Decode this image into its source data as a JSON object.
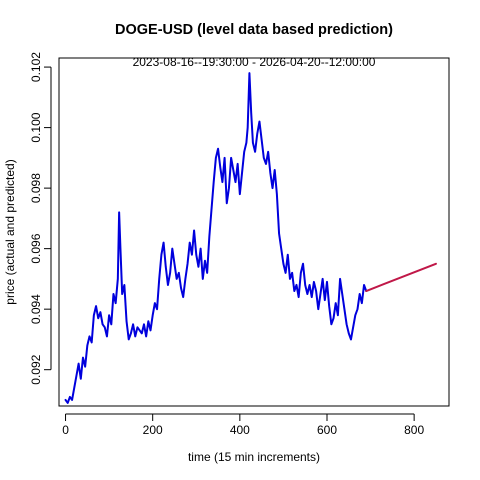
{
  "chart_data": {
    "type": "line",
    "title": "DOGE-USD (level data based prediction)",
    "subtitle": "2023-08-16--19:30:00  -  2026-04-20--12:00:00",
    "xlabel": "time (15 min increments)",
    "ylabel": "price (actual and predicted)",
    "xlim": [
      -15,
      880
    ],
    "ylim": [
      0.0908,
      0.1023
    ],
    "xticks": [
      0,
      200,
      400,
      600,
      800
    ],
    "yticks": [
      0.092,
      0.094,
      0.096,
      0.098,
      0.1,
      0.102
    ],
    "grid": false,
    "series": [
      {
        "color": "#0000dd",
        "x": [
          0,
          5,
          10,
          15,
          20,
          25,
          30,
          35,
          40,
          45,
          50,
          55,
          60,
          65,
          70,
          75,
          80,
          85,
          90,
          95,
          100,
          105,
          110,
          115,
          120,
          123,
          126,
          130,
          135,
          140,
          145,
          150,
          155,
          160,
          165,
          170,
          175,
          180,
          185,
          190,
          195,
          200,
          205,
          210,
          215,
          220,
          225,
          230,
          235,
          240,
          245,
          250,
          255,
          260,
          265,
          270,
          275,
          280,
          285,
          290,
          295,
          300,
          305,
          310,
          315,
          320,
          325,
          330,
          335,
          340,
          345,
          350,
          355,
          360,
          365,
          370,
          375,
          380,
          385,
          390,
          395,
          400,
          405,
          410,
          415,
          418,
          422,
          426,
          430,
          435,
          440,
          445,
          450,
          455,
          460,
          465,
          470,
          475,
          480,
          485,
          490,
          495,
          500,
          505,
          510,
          515,
          520,
          525,
          530,
          535,
          540,
          545,
          550,
          555,
          560,
          565,
          570,
          575,
          580,
          585,
          590,
          595,
          600,
          605,
          610,
          615,
          620,
          625,
          630,
          635,
          640,
          645,
          650,
          655,
          660,
          665,
          670,
          675,
          680,
          685,
          690
        ],
        "y": [
          0.091,
          0.0909,
          0.0911,
          0.091,
          0.0914,
          0.0918,
          0.0922,
          0.0917,
          0.0924,
          0.0921,
          0.0928,
          0.0931,
          0.0929,
          0.0938,
          0.0941,
          0.0937,
          0.0939,
          0.0935,
          0.0934,
          0.0931,
          0.0938,
          0.0935,
          0.0945,
          0.0942,
          0.095,
          0.0972,
          0.096,
          0.0945,
          0.0948,
          0.0936,
          0.093,
          0.0932,
          0.0935,
          0.0931,
          0.0934,
          0.0933,
          0.0932,
          0.0935,
          0.0931,
          0.0936,
          0.0933,
          0.0938,
          0.0942,
          0.094,
          0.095,
          0.0958,
          0.0962,
          0.0954,
          0.0948,
          0.0952,
          0.096,
          0.0955,
          0.095,
          0.0952,
          0.0947,
          0.0944,
          0.095,
          0.0955,
          0.0962,
          0.0958,
          0.0966,
          0.0958,
          0.0954,
          0.096,
          0.095,
          0.0956,
          0.0952,
          0.0964,
          0.0973,
          0.0982,
          0.099,
          0.0993,
          0.0987,
          0.0982,
          0.099,
          0.0975,
          0.098,
          0.099,
          0.0986,
          0.0982,
          0.0988,
          0.0978,
          0.0985,
          0.0992,
          0.0995,
          0.1,
          0.1018,
          0.1005,
          0.0995,
          0.0992,
          0.0998,
          0.1002,
          0.0996,
          0.099,
          0.0988,
          0.0992,
          0.0985,
          0.098,
          0.0986,
          0.0978,
          0.0965,
          0.096,
          0.0955,
          0.0952,
          0.0958,
          0.095,
          0.0952,
          0.0946,
          0.0948,
          0.0944,
          0.0952,
          0.0955,
          0.0948,
          0.0945,
          0.0948,
          0.0944,
          0.0949,
          0.0946,
          0.094,
          0.0945,
          0.095,
          0.0943,
          0.0949,
          0.0941,
          0.0935,
          0.0937,
          0.0942,
          0.0938,
          0.095,
          0.0945,
          0.094,
          0.0935,
          0.0932,
          0.093,
          0.0934,
          0.0938,
          0.094,
          0.0945,
          0.0942,
          0.0948,
          0.0946
        ]
      },
      {
        "color": "#c01848",
        "x": [
          690,
          850
        ],
        "y": [
          0.0946,
          0.0955
        ]
      }
    ]
  }
}
